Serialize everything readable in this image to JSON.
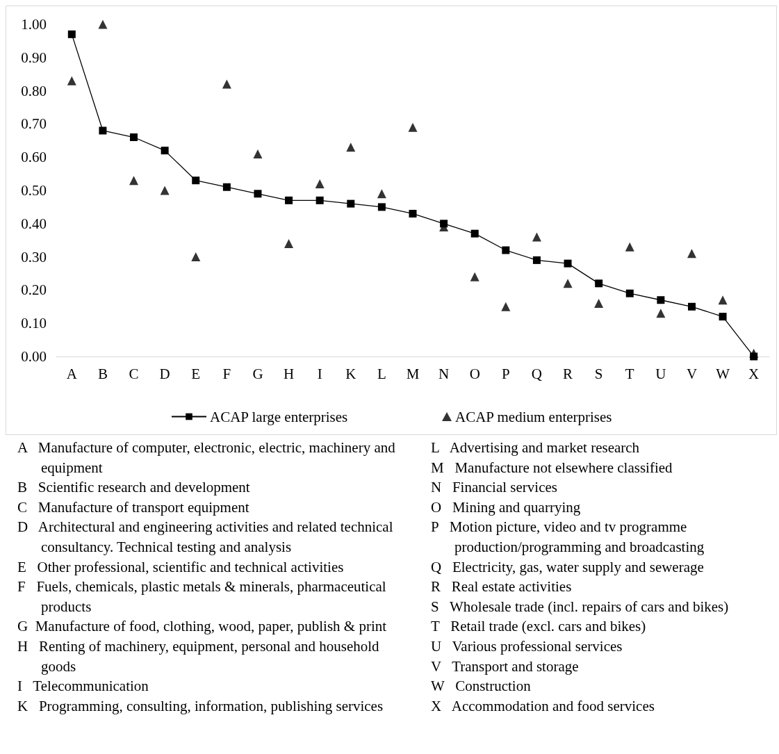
{
  "chart_data": {
    "type": "line",
    "categories": [
      "A",
      "B",
      "C",
      "D",
      "E",
      "F",
      "G",
      "H",
      "I",
      "K",
      "L",
      "M",
      "N",
      "O",
      "P",
      "Q",
      "R",
      "S",
      "T",
      "U",
      "V",
      "W",
      "X"
    ],
    "series": [
      {
        "name": "ACAP large enterprises",
        "marker": "square",
        "line_style": "solid",
        "color": "#000000",
        "values": [
          0.97,
          0.68,
          0.66,
          0.62,
          0.53,
          0.51,
          0.49,
          0.47,
          0.47,
          0.46,
          0.45,
          0.43,
          0.4,
          0.37,
          0.32,
          0.29,
          0.28,
          0.22,
          0.19,
          0.17,
          0.15,
          0.12,
          0.0
        ]
      },
      {
        "name": "ACAP medium enterprises",
        "type": "scatter",
        "marker": "triangle",
        "color": "#000000",
        "values": [
          0.83,
          1.0,
          0.53,
          0.5,
          0.3,
          0.82,
          0.61,
          0.34,
          0.52,
          0.63,
          0.49,
          0.69,
          0.39,
          0.24,
          0.15,
          0.36,
          0.22,
          0.16,
          0.33,
          0.13,
          0.31,
          0.17,
          0.01
        ]
      }
    ],
    "ylim": [
      0,
      1
    ],
    "yticks": [
      {
        "value": 0,
        "label": "0.00"
      },
      {
        "value": 0.1,
        "label": "0.10"
      },
      {
        "value": 0.2,
        "label": "0.20"
      },
      {
        "value": 0.3,
        "label": "0.30"
      },
      {
        "value": 0.4,
        "label": "0.40"
      },
      {
        "value": 0.5,
        "label": "0.50"
      },
      {
        "value": 0.6,
        "label": "0.60"
      },
      {
        "value": 0.7,
        "label": "0.70"
      },
      {
        "value": 0.8,
        "label": "0.80"
      },
      {
        "value": 0.9,
        "label": "0.90"
      },
      {
        "value": 1,
        "label": "1.00"
      }
    ],
    "grid": false,
    "legend": "bottom",
    "annotations": [
      "A   Manufacture of computer, electronic, electric, machinery and equipment",
      "B   Scientific research and development",
      "C   Manufacture of transport equipment",
      "D   Architectural and engineering activities and related technical consultancy. Technical testing and analysis",
      "E   Other professional, scientific and technical activities",
      "F   Fuels, chemicals, plastic metals & minerals, pharmaceutical products",
      "G  Manufacture of food, clothing, wood, paper, publish & print",
      "H   Renting of machinery, equipment, personal and household goods",
      "I   Telecommunication",
      "K   Programming, consulting, information, publishing services",
      "L   Advertising and market research",
      "M   Manufacture not elsewhere classified",
      "N   Financial services",
      "O   Mining and quarrying",
      "P   Motion picture, video and tv programme production/programming and broadcasting",
      "Q   Electricity, gas, water supply and sewerage",
      "R   Real estate activities",
      "S   Wholesale trade (incl. repairs of cars and bikes)",
      "T   Retail trade (excl. cars and bikes)",
      "U   Various professional services",
      "V   Transport and storage",
      "W   Construction",
      "X   Accommodation and food services"
    ]
  }
}
